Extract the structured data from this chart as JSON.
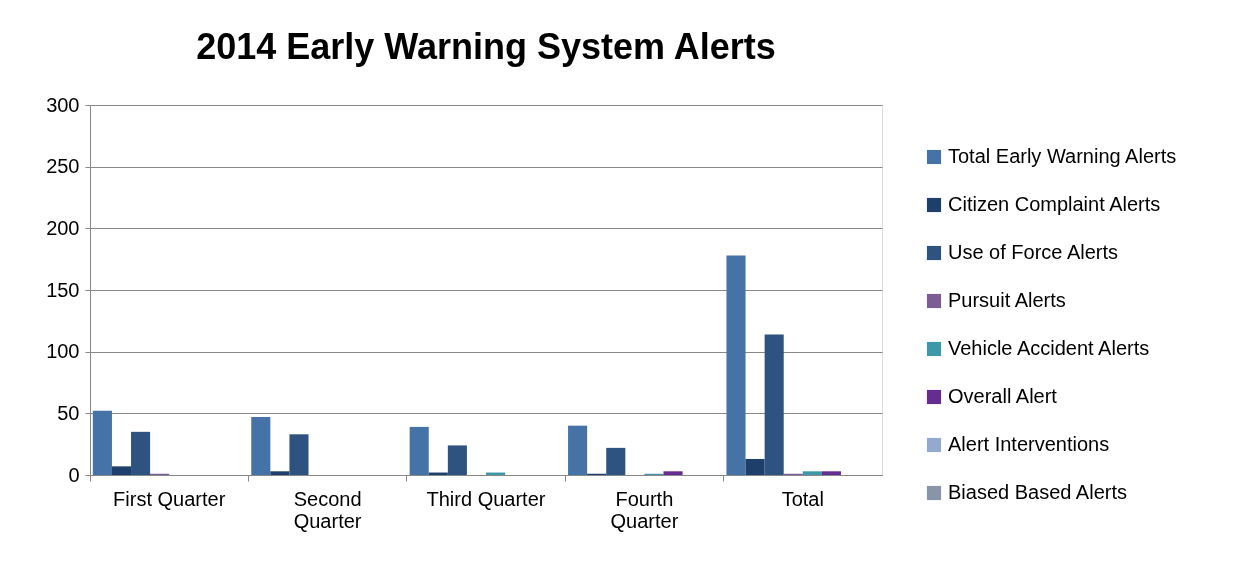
{
  "chart_data": {
    "type": "bar",
    "title": "2014 Early Warning System Alerts",
    "categories": [
      "First Quarter",
      "Second Quarter",
      "Third Quarter",
      "Fourth Quarter",
      "Total"
    ],
    "series": [
      {
        "name": "Total Early Warning Alerts",
        "color": "#4572a7",
        "values": [
          52,
          47,
          39,
          40,
          178
        ]
      },
      {
        "name": "Citizen Complaint Alerts",
        "color": "#1f3f6b",
        "values": [
          7,
          3,
          2,
          1,
          13
        ]
      },
      {
        "name": "Use of Force Alerts",
        "color": "#2e5380",
        "values": [
          35,
          33,
          24,
          22,
          114
        ]
      },
      {
        "name": "Pursuit Alerts",
        "color": "#7b5c94",
        "values": [
          1,
          0,
          0,
          0,
          1
        ]
      },
      {
        "name": "Vehicle Accident Alerts",
        "color": "#3f98a9",
        "values": [
          0,
          0,
          2,
          1,
          3
        ]
      },
      {
        "name": "Overall Alert",
        "color": "#662d91",
        "values": [
          0,
          0,
          0,
          3,
          3
        ]
      },
      {
        "name": "Alert Interventions",
        "color": "#93a9cf",
        "values": [
          0,
          0,
          0,
          0,
          0
        ]
      },
      {
        "name": "Biased Based Alerts",
        "color": "#8894a8",
        "values": [
          0,
          0,
          0,
          0,
          0
        ]
      }
    ],
    "ylim": [
      0,
      300
    ],
    "yticks": [
      0,
      50,
      100,
      150,
      200,
      250,
      300
    ],
    "grid": "y",
    "legend": "right"
  }
}
